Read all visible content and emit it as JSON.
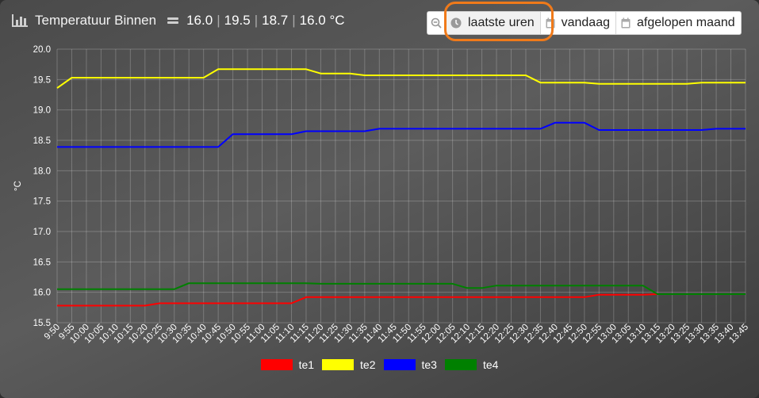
{
  "header": {
    "title": "Temperatuur Binnen",
    "values": [
      "16.0",
      "19.5",
      "18.7",
      "16.0 °C"
    ],
    "separator": "|"
  },
  "toolbar": {
    "zoom_icon": "zoom-out-icon",
    "buttons": [
      {
        "label": "laatste uren",
        "icon": "clock-icon",
        "active": true
      },
      {
        "label": "vandaag",
        "icon": "calendar-icon",
        "active": false
      },
      {
        "label": "afgelopen maand",
        "icon": "calendar-icon",
        "active": false
      }
    ]
  },
  "colors": {
    "te1": "#ff0000",
    "te2": "#ffff00",
    "te3": "#0000ff",
    "te4": "#008000",
    "highlight": "#f07a1a"
  },
  "chart_data": {
    "type": "line",
    "title": "",
    "xlabel": "",
    "ylabel": "°C",
    "ylim": [
      15.5,
      20.0
    ],
    "yticks": [
      "15.5",
      "16.0",
      "16.5",
      "17.0",
      "17.5",
      "18.0",
      "18.5",
      "19.0",
      "19.5",
      "20.0"
    ],
    "grid": true,
    "legend_position": "bottom",
    "x": [
      "9:50",
      "9:55",
      "10:00",
      "10:05",
      "10:10",
      "10:15",
      "10:20",
      "10:25",
      "10:30",
      "10:35",
      "10:40",
      "10:45",
      "10:50",
      "10:55",
      "11:00",
      "11:05",
      "11:10",
      "11:15",
      "11:20",
      "11:25",
      "11:30",
      "11:35",
      "11:40",
      "11:45",
      "11:50",
      "11:55",
      "12:00",
      "12:05",
      "12:10",
      "12:15",
      "12:20",
      "12:25",
      "12:30",
      "12:35",
      "12:40",
      "12:45",
      "12:50",
      "12:55",
      "13:00",
      "13:05",
      "13:10",
      "13:15",
      "13:20",
      "13:25",
      "13:30",
      "13:35",
      "13:40",
      "13:45"
    ],
    "series": [
      {
        "name": "te1",
        "values": [
          15.78,
          15.78,
          15.78,
          15.78,
          15.78,
          15.78,
          15.78,
          15.82,
          15.82,
          15.82,
          15.82,
          15.82,
          15.82,
          15.82,
          15.82,
          15.82,
          15.82,
          15.92,
          15.92,
          15.92,
          15.92,
          15.92,
          15.92,
          15.92,
          15.92,
          15.92,
          15.92,
          15.92,
          15.92,
          15.92,
          15.92,
          15.92,
          15.92,
          15.92,
          15.92,
          15.92,
          15.92,
          15.96,
          15.96,
          15.96,
          15.96,
          15.97,
          15.97,
          15.97,
          15.97,
          15.97,
          15.97,
          15.97
        ]
      },
      {
        "name": "te2",
        "values": [
          19.36,
          19.53,
          19.53,
          19.53,
          19.53,
          19.53,
          19.53,
          19.53,
          19.53,
          19.53,
          19.53,
          19.67,
          19.67,
          19.67,
          19.67,
          19.67,
          19.67,
          19.67,
          19.6,
          19.6,
          19.6,
          19.57,
          19.57,
          19.57,
          19.57,
          19.57,
          19.57,
          19.57,
          19.57,
          19.57,
          19.57,
          19.57,
          19.57,
          19.45,
          19.45,
          19.45,
          19.45,
          19.43,
          19.43,
          19.43,
          19.43,
          19.43,
          19.43,
          19.43,
          19.45,
          19.45,
          19.45,
          19.45
        ]
      },
      {
        "name": "te3",
        "values": [
          18.39,
          18.39,
          18.39,
          18.39,
          18.39,
          18.39,
          18.39,
          18.39,
          18.39,
          18.39,
          18.39,
          18.39,
          18.6,
          18.6,
          18.6,
          18.6,
          18.6,
          18.65,
          18.65,
          18.65,
          18.65,
          18.65,
          18.69,
          18.69,
          18.69,
          18.69,
          18.69,
          18.69,
          18.69,
          18.69,
          18.69,
          18.69,
          18.69,
          18.69,
          18.79,
          18.79,
          18.79,
          18.67,
          18.67,
          18.67,
          18.67,
          18.67,
          18.67,
          18.67,
          18.67,
          18.69,
          18.69,
          18.69
        ]
      },
      {
        "name": "te4",
        "values": [
          16.05,
          16.05,
          16.05,
          16.05,
          16.05,
          16.05,
          16.05,
          16.05,
          16.05,
          16.15,
          16.15,
          16.15,
          16.15,
          16.15,
          16.15,
          16.15,
          16.15,
          16.15,
          16.14,
          16.14,
          16.14,
          16.14,
          16.14,
          16.14,
          16.14,
          16.14,
          16.14,
          16.14,
          16.07,
          16.07,
          16.11,
          16.11,
          16.11,
          16.11,
          16.11,
          16.11,
          16.11,
          16.11,
          16.11,
          16.11,
          16.11,
          15.97,
          15.97,
          15.97,
          15.97,
          15.97,
          15.97,
          15.97
        ]
      }
    ]
  }
}
